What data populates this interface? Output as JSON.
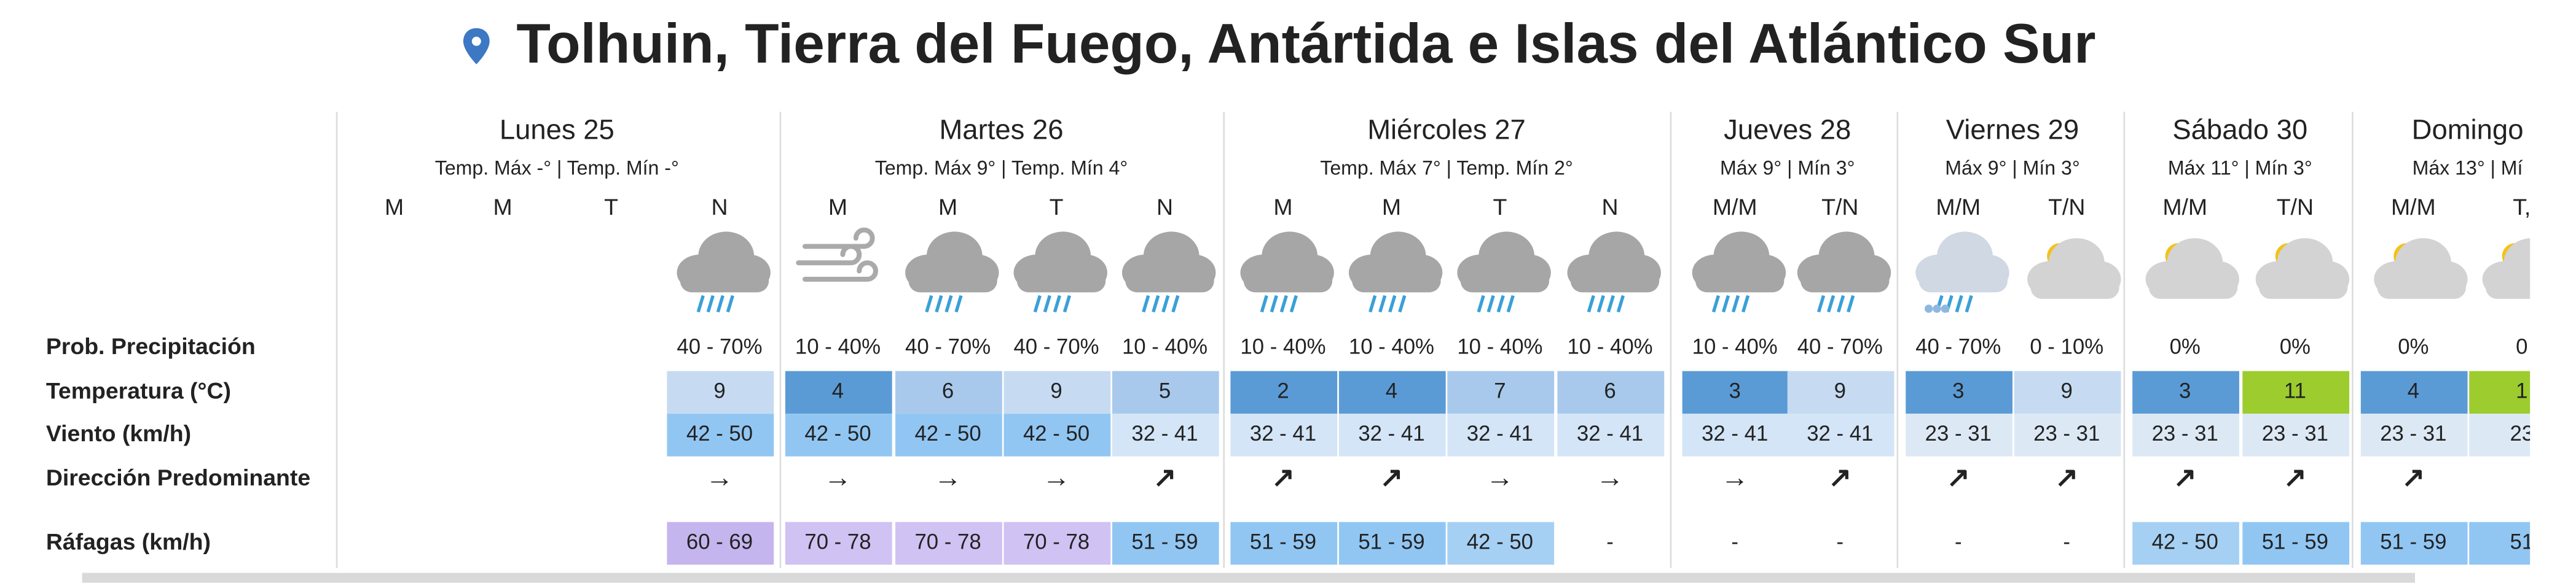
{
  "header": {
    "title": "Tolhuin, Tierra del Fuego, Antártida e Islas del Atlántico Sur"
  },
  "days": [
    {
      "name": "Lunes 25",
      "temps": "Temp. Máx -° | Temp. Mín -°",
      "periods": [
        "M",
        "M",
        "T",
        "N"
      ]
    },
    {
      "name": "Martes 26",
      "temps": "Temp. Máx 9° | Temp. Mín 4°",
      "periods": [
        "M",
        "M",
        "T",
        "N"
      ]
    },
    {
      "name": "Miércoles 27",
      "temps": "Temp. Máx 7° | Temp. Mín 2°",
      "periods": [
        "M",
        "M",
        "T",
        "N"
      ]
    },
    {
      "name": "Jueves 28",
      "temps": "Máx 9° | Mín 3°",
      "periods": [
        "M/M",
        "T/N"
      ]
    },
    {
      "name": "Viernes 29",
      "temps": "Máx 9° | Mín 3°",
      "periods": [
        "M/M",
        "T/N"
      ]
    },
    {
      "name": "Sábado 30",
      "temps": "Máx 11° | Mín 3°",
      "periods": [
        "M/M",
        "T/N"
      ]
    },
    {
      "name": "Domingo",
      "temps": "Máx 13° | Mí",
      "periods": [
        "M/M",
        "T,"
      ]
    }
  ],
  "rows": [
    {
      "label": "Prob. Precipitación",
      "cells": [
        null,
        null,
        null,
        "40 - 70%",
        "10 - 40%",
        "40 - 70%",
        "40 - 70%",
        "10 - 40%",
        "10 - 40%",
        "10 - 40%",
        "10 - 40%",
        "10 - 40%",
        "10 - 40%",
        "40 - 70%",
        "40 - 70%",
        "0 - 10%",
        "0%",
        "0%",
        "0%",
        "0"
      ]
    },
    {
      "label": "Temperatura (°C)",
      "cells": [
        null,
        null,
        null,
        9,
        4,
        6,
        9,
        5,
        2,
        4,
        7,
        6,
        3,
        9,
        3,
        9,
        3,
        11,
        4,
        1
      ],
      "colors": [
        null,
        null,
        null,
        "#c6dbf1",
        "#5b9bd5",
        "#a8c9ec",
        "#c6dbf1",
        "#a8c9ec",
        "#5b9bd5",
        "#5b9bd5",
        "#a8c9ec",
        "#a8c9ec",
        "#5b9bd5",
        "#c6dbf1",
        "#5b9bd5",
        "#c6dbf1",
        "#5b9bd5",
        "#9ccc2e",
        "#5b9bd5",
        "#9ccc2e"
      ]
    },
    {
      "label": "Viento (km/h)",
      "cells": [
        null,
        null,
        null,
        "42 - 50",
        "42 - 50",
        "42 - 50",
        "42 - 50",
        "32 - 41",
        "32 - 41",
        "32 - 41",
        "32 - 41",
        "32 - 41",
        "32 - 41",
        "32 - 41",
        "23 - 31",
        "23 - 31",
        "23 - 31",
        "23 - 31",
        "23 - 31",
        "23"
      ],
      "colors": [
        null,
        null,
        null,
        "#91c6f3",
        "#91c6f3",
        "#91c6f3",
        "#91c6f3",
        "#d3e5f6",
        "#d3e5f6",
        "#d3e5f6",
        "#d3e5f6",
        "#d3e5f6",
        "#d3e5f6",
        "#d3e5f6",
        "#dce9f5",
        "#dce9f5",
        "#dce9f5",
        "#dce9f5",
        "#dce9f5",
        "#dce9f5"
      ]
    },
    {
      "label": "Dirección Predominante",
      "cells": [
        null,
        null,
        null,
        "→",
        "→",
        "→",
        "→",
        "↗",
        "↗",
        "↗",
        "→",
        "→",
        "→",
        "↗",
        "↗",
        "↗",
        "↗",
        "↗",
        "↗",
        null
      ]
    },
    {
      "label": "Ráfagas (km/h)",
      "cells": [
        null,
        null,
        null,
        "60 - 69",
        "70 - 78",
        "70 - 78",
        "70 - 78",
        "51 - 59",
        "51 - 59",
        "51 - 59",
        "42 - 50",
        "-",
        "-",
        "-",
        "-",
        "-",
        "42 - 50",
        "51 - 59",
        "51 - 59",
        "51"
      ],
      "colors": [
        null,
        null,
        null,
        "#c5b5ee",
        "#d0c2f3",
        "#d0c2f3",
        "#d0c2f3",
        "#91c6f3",
        "#91c6f3",
        "#91c6f3",
        "#a6d0f3",
        null,
        null,
        null,
        null,
        null,
        "#a6d0f3",
        "#91c6f3",
        "#91c6f3",
        "#91c6f3"
      ]
    }
  ]
}
